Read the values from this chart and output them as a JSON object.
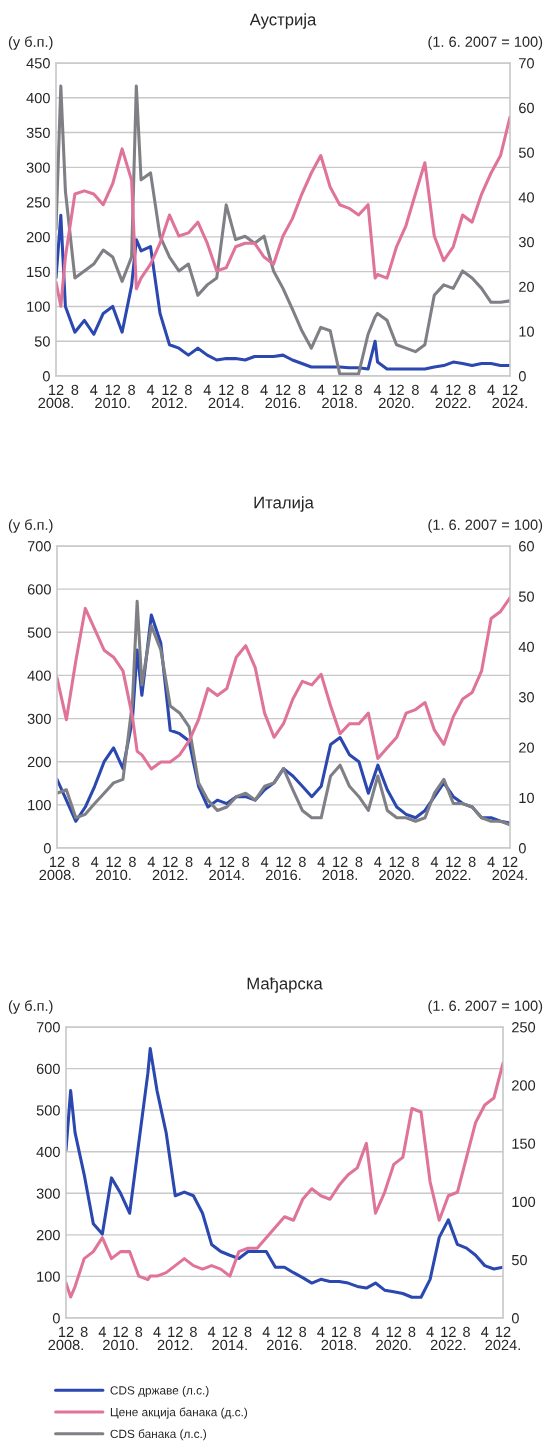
{
  "chart_data": [
    {
      "type": "line",
      "title": "Аустрија",
      "ylabel": "(у б.п.)",
      "y2label": "(1. 6. 2007 = 100)",
      "x": [
        "2008-12",
        "2009-02",
        "2009-04",
        "2009-08",
        "2009-12",
        "2010-04",
        "2010-08",
        "2010-12",
        "2011-04",
        "2011-08",
        "2011-10",
        "2011-12",
        "2012-04",
        "2012-08",
        "2012-12",
        "2013-04",
        "2013-08",
        "2013-12",
        "2014-04",
        "2014-08",
        "2014-12",
        "2015-04",
        "2015-08",
        "2015-12",
        "2016-04",
        "2016-08",
        "2016-12",
        "2017-04",
        "2017-08",
        "2017-12",
        "2018-04",
        "2018-08",
        "2018-12",
        "2019-04",
        "2019-08",
        "2019-12",
        "2020-03",
        "2020-04",
        "2020-08",
        "2020-12",
        "2021-04",
        "2021-08",
        "2021-12",
        "2022-04",
        "2022-08",
        "2022-12",
        "2023-04",
        "2023-08",
        "2023-12",
        "2024-04",
        "2024-08",
        "2024-12"
      ],
      "series": [
        {
          "name": "CDS државе (л.с.)",
          "color": "#2b47b0",
          "values": [
            141,
            231,
            100,
            63,
            80,
            60,
            90,
            100,
            63,
            130,
            196,
            180,
            186,
            90,
            45,
            40,
            30,
            40,
            30,
            23,
            25,
            25,
            23,
            28,
            28,
            28,
            30,
            23,
            18,
            13,
            13,
            13,
            13,
            12,
            12,
            10,
            50,
            20,
            10,
            10,
            10,
            10,
            10,
            13,
            15,
            20,
            18,
            15,
            18,
            18,
            15,
            15
          ]
        },
        {
          "name": "Цене акција банака (д.с.)",
          "color": "#e0739a",
          "axis": "y2",
          "values": [
            21,
            15.6,
            26.6,
            40.7,
            41.4,
            40.7,
            38.3,
            43,
            50.8,
            43.8,
            19.5,
            21.9,
            25,
            29.7,
            36,
            31.3,
            32,
            34.4,
            29.7,
            23.5,
            24.2,
            28.9,
            29.7,
            29.7,
            26.6,
            25,
            31.3,
            35.2,
            40.7,
            45.4,
            49.3,
            42.2,
            38.3,
            37.5,
            36,
            38.3,
            21.9,
            22.7,
            21.9,
            28.9,
            33.6,
            40.7,
            47.7,
            31.3,
            25.8,
            28.9,
            36,
            34.4,
            40.7,
            45.4,
            49.3,
            57.9
          ]
        },
        {
          "name": "CDS банака (л.с.)",
          "color": "#7f7f86",
          "values": [
            211,
            417,
            266,
            141,
            151,
            161,
            181,
            171,
            136,
            171,
            417,
            282,
            292,
            201,
            171,
            151,
            161,
            116,
            131,
            141,
            246,
            196,
            201,
            191,
            201,
            151,
            126,
            96,
            65,
            40,
            70,
            65,
            3,
            3,
            3,
            60,
            85,
            90,
            80,
            45,
            40,
            35,
            45,
            116,
            131,
            126,
            151,
            141,
            126,
            106,
            106,
            108
          ]
        }
      ],
      "xlim": [
        "2008-12",
        "2024-12"
      ],
      "xticks": [
        {
          "value": "2008-12",
          "label": "12\n2008."
        },
        {
          "value": "2009-08",
          "label": "8"
        },
        {
          "value": "2010-04",
          "label": "4"
        },
        {
          "value": "2010-12",
          "label": "12\n2010."
        },
        {
          "value": "2011-08",
          "label": "8"
        },
        {
          "value": "2012-04",
          "label": "4"
        },
        {
          "value": "2012-12",
          "label": "12\n2012."
        },
        {
          "value": "2013-08",
          "label": "8"
        },
        {
          "value": "2014-04",
          "label": "4"
        },
        {
          "value": "2014-12",
          "label": "12\n2014."
        },
        {
          "value": "2015-08",
          "label": "8"
        },
        {
          "value": "2016-04",
          "label": "4"
        },
        {
          "value": "2016-12",
          "label": "12\n2016."
        },
        {
          "value": "2017-08",
          "label": "8"
        },
        {
          "value": "2018-04",
          "label": "4"
        },
        {
          "value": "2018-12",
          "label": "12\n2018."
        },
        {
          "value": "2019-08",
          "label": "8"
        },
        {
          "value": "2020-04",
          "label": "4"
        },
        {
          "value": "2020-12",
          "label": "12\n2020."
        },
        {
          "value": "2021-08",
          "label": "8"
        },
        {
          "value": "2022-04",
          "label": "4"
        },
        {
          "value": "2022-12",
          "label": "12\n2022."
        },
        {
          "value": "2023-08",
          "label": "8"
        },
        {
          "value": "2024-04",
          "label": "4"
        },
        {
          "value": "2024-12",
          "label": "12\n2024."
        }
      ],
      "ylim": [
        0,
        450
      ],
      "yticks": [
        0,
        50,
        100,
        150,
        200,
        250,
        300,
        350,
        400,
        450
      ],
      "y2lim": [
        0,
        70
      ],
      "y2ticks": [
        0,
        10,
        20,
        30,
        40,
        50,
        60,
        70
      ],
      "grid": "y",
      "legend": "bottom"
    },
    {
      "type": "line",
      "title": "Италија",
      "ylabel": "(у б.п.)",
      "y2label": "(1. 6. 2007 = 100)",
      "x": [
        "2008-12",
        "2009-04",
        "2009-08",
        "2009-12",
        "2010-04",
        "2010-08",
        "2010-12",
        "2011-04",
        "2011-08",
        "2011-10",
        "2011-12",
        "2012-04",
        "2012-08",
        "2012-12",
        "2013-04",
        "2013-08",
        "2013-12",
        "2014-04",
        "2014-08",
        "2014-12",
        "2015-04",
        "2015-08",
        "2015-12",
        "2016-04",
        "2016-08",
        "2016-12",
        "2017-04",
        "2017-08",
        "2017-12",
        "2018-04",
        "2018-08",
        "2018-12",
        "2019-04",
        "2019-08",
        "2019-12",
        "2020-04",
        "2020-08",
        "2020-12",
        "2021-04",
        "2021-08",
        "2021-12",
        "2022-04",
        "2022-08",
        "2022-12",
        "2023-04",
        "2023-08",
        "2023-12",
        "2024-04",
        "2024-08",
        "2024-12"
      ],
      "series": [
        {
          "color": "#2b47b0",
          "values": [
            159,
            111,
            62,
            95,
            143,
            200,
            232,
            184,
            297,
            459,
            354,
            540,
            475,
            273,
            265,
            248,
            143,
            95,
            111,
            103,
            119,
            119,
            111,
            135,
            151,
            184,
            167,
            143,
            119,
            143,
            240,
            256,
            216,
            200,
            127,
            192,
            135,
            95,
            78,
            70,
            87,
            119,
            151,
            119,
            103,
            95,
            70,
            70,
            62,
            58
          ]
        },
        {
          "color": "#e0739a",
          "axis": "y2",
          "values": [
            33.8,
            25.5,
            37.2,
            47.6,
            43.5,
            39.3,
            37.9,
            35.2,
            26.1,
            19.2,
            18.5,
            15.7,
            17.1,
            17.1,
            18.5,
            21.3,
            25.5,
            31.7,
            30.3,
            31.7,
            37.9,
            40.2,
            35.9,
            26.8,
            22,
            24.7,
            29.6,
            33.1,
            32.4,
            34.5,
            28.2,
            22.7,
            24.7,
            24.7,
            26.8,
            17.8,
            19.9,
            22,
            26.8,
            27.5,
            28.9,
            23.4,
            20.6,
            26.1,
            29.6,
            30.9,
            35.2,
            45.6,
            47,
            49.7
          ]
        },
        {
          "color": "#7f7f86",
          "values": [
            127,
            135,
            70,
            78,
            103,
            127,
            151,
            159,
            337,
            572,
            378,
            515,
            459,
            329,
            313,
            281,
            151,
            111,
            87,
            95,
            119,
            127,
            111,
            143,
            151,
            184,
            135,
            87,
            70,
            70,
            167,
            192,
            143,
            119,
            87,
            167,
            87,
            70,
            70,
            62,
            70,
            127,
            159,
            103,
            103,
            95,
            70,
            62,
            62,
            54
          ]
        }
      ],
      "xlim": [
        "2008-12",
        "2024-12"
      ],
      "xticks": [
        {
          "value": "2008-12",
          "label": "12\n2008."
        },
        {
          "value": "2009-08",
          "label": "8"
        },
        {
          "value": "2010-04",
          "label": "4"
        },
        {
          "value": "2010-12",
          "label": "12\n2010."
        },
        {
          "value": "2011-08",
          "label": "8"
        },
        {
          "value": "2012-04",
          "label": "4"
        },
        {
          "value": "2012-12",
          "label": "12\n2012."
        },
        {
          "value": "2013-08",
          "label": "8"
        },
        {
          "value": "2014-04",
          "label": "4"
        },
        {
          "value": "2014-12",
          "label": "12\n2014."
        },
        {
          "value": "2015-08",
          "label": "8"
        },
        {
          "value": "2016-04",
          "label": "4"
        },
        {
          "value": "2016-12",
          "label": "12\n2016."
        },
        {
          "value": "2017-08",
          "label": "8"
        },
        {
          "value": "2018-04",
          "label": "4"
        },
        {
          "value": "2018-12",
          "label": "12\n2018."
        },
        {
          "value": "2019-08",
          "label": "8"
        },
        {
          "value": "2020-04",
          "label": "4"
        },
        {
          "value": "2020-12",
          "label": "12\n2020."
        },
        {
          "value": "2021-08",
          "label": "8"
        },
        {
          "value": "2022-04",
          "label": "4"
        },
        {
          "value": "2022-12",
          "label": "12\n2022."
        },
        {
          "value": "2023-08",
          "label": "8"
        },
        {
          "value": "2024-04",
          "label": "4"
        },
        {
          "value": "2024-12",
          "label": "12\n2024."
        }
      ],
      "ylim": [
        0,
        700
      ],
      "yticks": [
        0,
        100,
        200,
        300,
        400,
        500,
        600,
        700
      ],
      "y2lim": [
        0,
        60
      ],
      "y2ticks": [
        0,
        10,
        20,
        30,
        40,
        50,
        60
      ],
      "grid": "y"
    },
    {
      "type": "line",
      "title": "Мађарска",
      "ylabel": "(у б.п.)",
      "y2label": "(1. 6. 2007 = 100)",
      "x": [
        "2008-12",
        "2009-02",
        "2009-04",
        "2009-08",
        "2009-12",
        "2010-04",
        "2010-08",
        "2010-12",
        "2011-04",
        "2011-08",
        "2011-12",
        "2012-01",
        "2012-04",
        "2012-08",
        "2012-12",
        "2013-04",
        "2013-08",
        "2013-12",
        "2014-04",
        "2014-08",
        "2014-12",
        "2015-04",
        "2015-08",
        "2015-12",
        "2016-04",
        "2016-08",
        "2016-12",
        "2017-04",
        "2017-08",
        "2017-12",
        "2018-04",
        "2018-08",
        "2018-12",
        "2019-04",
        "2019-08",
        "2019-12",
        "2020-04",
        "2020-08",
        "2020-12",
        "2021-04",
        "2021-08",
        "2021-12",
        "2022-04",
        "2022-08",
        "2022-12",
        "2023-04",
        "2023-08",
        "2023-12",
        "2024-04",
        "2024-08",
        "2024-12"
      ],
      "series": [
        {
          "color": "#2b47b0",
          "values": [
            404,
            547,
            446,
            345,
            227,
            202,
            337,
            300,
            252,
            421,
            589,
            648,
            547,
            446,
            294,
            303,
            294,
            252,
            177,
            160,
            151,
            143,
            160,
            160,
            160,
            122,
            122,
            109,
            97,
            84,
            93,
            88,
            88,
            84,
            76,
            72,
            84,
            67,
            63,
            59,
            50,
            50,
            93,
            194,
            236,
            177,
            168,
            151,
            126,
            118,
            122
          ]
        },
        {
          "color": "#e0739a",
          "axis": "y2",
          "values": [
            30,
            18,
            27,
            51,
            57,
            69,
            51,
            57,
            57,
            36,
            33,
            36,
            36,
            39,
            45,
            51,
            45,
            42,
            45,
            42,
            36,
            57,
            60,
            60,
            69,
            78,
            87,
            84,
            102,
            111,
            105,
            102,
            114,
            123,
            129,
            150,
            90,
            108,
            132,
            138,
            180,
            177,
            117,
            84,
            105,
            108,
            138,
            168,
            183,
            189,
            219
          ]
        }
      ],
      "xlim": [
        "2008-12",
        "2024-12"
      ],
      "xticks": [
        {
          "value": "2008-12",
          "label": "12\n2008."
        },
        {
          "value": "2009-08",
          "label": "8"
        },
        {
          "value": "2010-04",
          "label": "4"
        },
        {
          "value": "2010-12",
          "label": "12\n2010."
        },
        {
          "value": "2011-08",
          "label": "8"
        },
        {
          "value": "2012-04",
          "label": "4"
        },
        {
          "value": "2012-12",
          "label": "12\n2012."
        },
        {
          "value": "2013-08",
          "label": "8"
        },
        {
          "value": "2014-04",
          "label": "4"
        },
        {
          "value": "2014-12",
          "label": "12\n2014."
        },
        {
          "value": "2015-08",
          "label": "8"
        },
        {
          "value": "2016-04",
          "label": "4"
        },
        {
          "value": "2016-12",
          "label": "12\n2016."
        },
        {
          "value": "2017-08",
          "label": "8"
        },
        {
          "value": "2018-04",
          "label": "4"
        },
        {
          "value": "2018-12",
          "label": "12\n2018."
        },
        {
          "value": "2019-08",
          "label": "8"
        },
        {
          "value": "2020-04",
          "label": "4"
        },
        {
          "value": "2020-12",
          "label": "12\n2020."
        },
        {
          "value": "2021-08",
          "label": "8"
        },
        {
          "value": "2022-04",
          "label": "4"
        },
        {
          "value": "2022-12",
          "label": "12\n2022."
        },
        {
          "value": "2023-08",
          "label": "8"
        },
        {
          "value": "2024-04",
          "label": "4"
        },
        {
          "value": "2024-12",
          "label": "12\n2024."
        }
      ],
      "ylim": [
        0,
        700
      ],
      "yticks": [
        0,
        100,
        200,
        300,
        400,
        500,
        600,
        700
      ],
      "y2lim": [
        0,
        250
      ],
      "y2ticks": [
        0,
        50,
        100,
        150,
        200,
        250
      ],
      "grid": "y"
    }
  ]
}
